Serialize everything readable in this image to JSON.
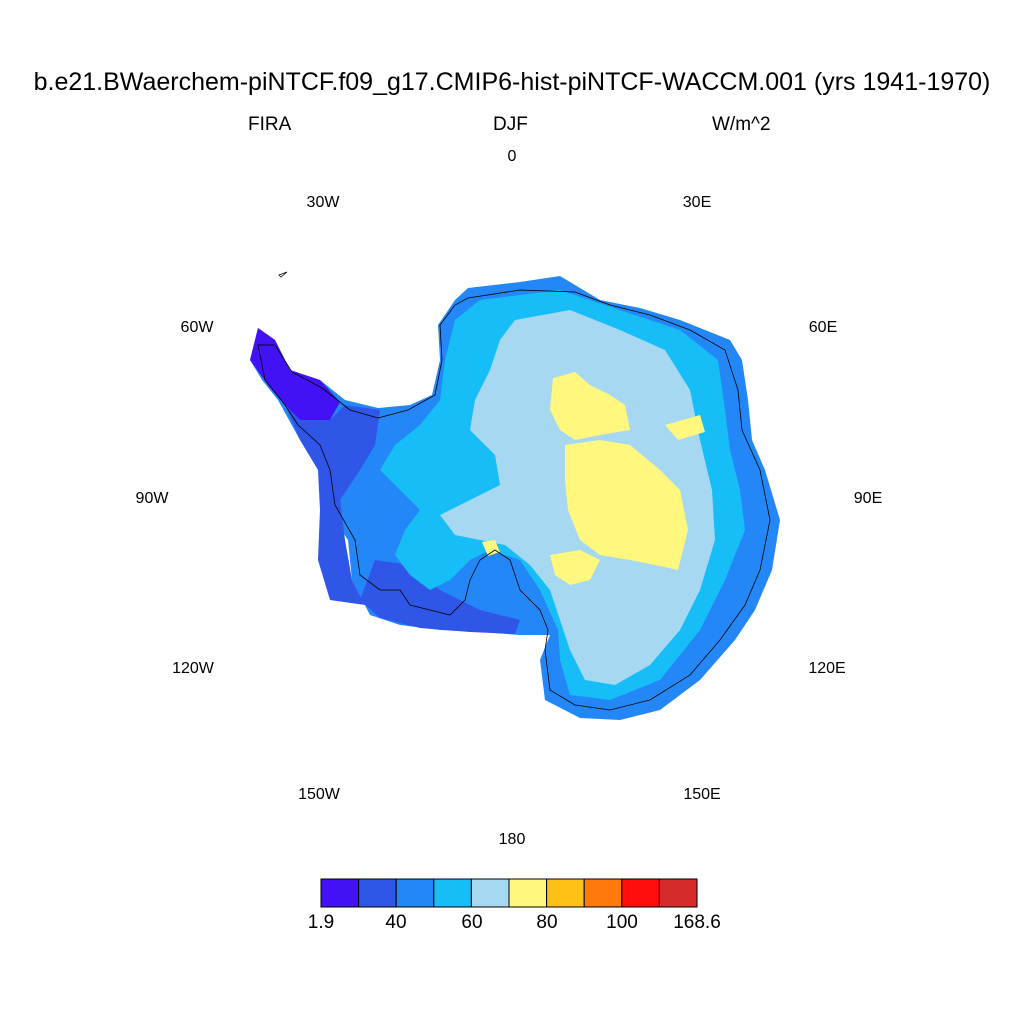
{
  "header": {
    "title": "b.e21.BWaerchem-piNTCF.f09_g17.CMIP6-hist-piNTCF-WACCM.001 (yrs 1941-1970)",
    "variable": "FIRA",
    "season": "DJF",
    "units": "W/m^2"
  },
  "longitude_labels": [
    "0",
    "30E",
    "60E",
    "90E",
    "120E",
    "150E",
    "180",
    "150W",
    "120W",
    "90W",
    "60W",
    "30W"
  ],
  "colorbar": {
    "colors": [
      "#4212f5",
      "#3056e8",
      "#2387f7",
      "#17bdf7",
      "#a6d8f2",
      "#fff77e",
      "#ffc116",
      "#ff7a0a",
      "#ff0d0d",
      "#d52b2b"
    ],
    "labels": [
      "1.9",
      "40",
      "60",
      "80",
      "100",
      "168.6"
    ]
  },
  "map_colors": {
    "coast": "#000000",
    "land_outer": "#3056e8",
    "band1": "#2387f7",
    "band2": "#17bdf7",
    "interior": "#a6d8f2",
    "high": "#fff77e",
    "peninsula": "#4212f5"
  }
}
